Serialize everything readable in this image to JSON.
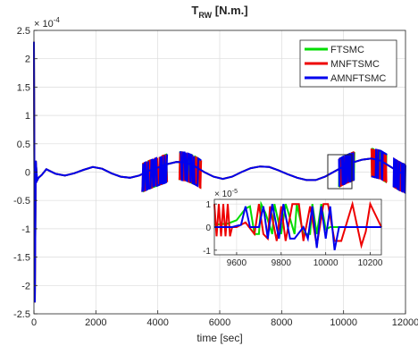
{
  "chart_data": [
    {
      "type": "line",
      "title_main": "T",
      "title_sub": "RW",
      "title_rest": " [N.m.]",
      "xlabel": "time [sec]",
      "ylabel": "",
      "exponent_base": "× 10",
      "exponent_power": "-4",
      "xlim": [
        0,
        12000
      ],
      "ylim": [
        -2.5,
        2.5
      ],
      "xticks": [
        0,
        2000,
        4000,
        6000,
        8000,
        10000,
        12000
      ],
      "yticks": [
        -2.5,
        -2,
        -1.5,
        -1,
        -0.5,
        0,
        0.5,
        1,
        1.5,
        2,
        2.5
      ],
      "grid": true,
      "legend_position": "top-right",
      "series": [
        {
          "name": "FTSMC",
          "color": "#00dd00"
        },
        {
          "name": "MNFTSMC",
          "color": "#ee0000"
        },
        {
          "name": "AMNFTSMC",
          "color": "#0000ee"
        }
      ],
      "baseline_signal": {
        "x": [
          0,
          30,
          60,
          100,
          150,
          250,
          400,
          700,
          1000,
          1300,
          1600,
          1900,
          2200,
          2500,
          2800,
          3100,
          3400,
          3700,
          4000,
          4300,
          4600,
          4900,
          5200,
          5500,
          5800,
          6100,
          6400,
          6700,
          7000,
          7300,
          7600,
          7900,
          8200,
          8500,
          8800,
          9100,
          9400,
          9700,
          10000,
          10300,
          10600,
          10900,
          11200,
          11500,
          11800,
          12000
        ],
        "y": [
          2.3,
          -2.3,
          0.2,
          -0.15,
          -0.1,
          -0.05,
          0.05,
          -0.03,
          -0.06,
          -0.02,
          0.04,
          0.09,
          0.06,
          -0.02,
          -0.08,
          -0.1,
          -0.06,
          0.02,
          0.08,
          0.14,
          0.18,
          0.17,
          0.1,
          0.0,
          -0.08,
          -0.12,
          -0.08,
          0.0,
          0.07,
          0.1,
          0.09,
          0.03,
          -0.04,
          -0.1,
          -0.14,
          -0.14,
          -0.08,
          0.01,
          0.1,
          0.17,
          0.22,
          0.24,
          0.2,
          0.1,
          0.0,
          -0.05
        ]
      },
      "chatter_ranges": [
        [
          3500,
          4300
        ],
        [
          4700,
          5400
        ],
        [
          9850,
          10350
        ],
        [
          10900,
          11400
        ],
        [
          11600,
          12000
        ]
      ]
    },
    {
      "type": "line",
      "title": "",
      "exponent_base": "× 10",
      "exponent_power": "-5",
      "xlim": [
        9500,
        10250
      ],
      "ylim": [
        -1.2,
        1.2
      ],
      "xticks": [
        9600,
        9800,
        10000,
        10200
      ],
      "yticks": [
        -1,
        0,
        1
      ],
      "grid": true,
      "series": [
        {
          "name": "FTSMC",
          "color": "#00dd00",
          "x": [
            9500,
            9560,
            9600,
            9640,
            9660,
            9680,
            9700,
            9710,
            9730,
            9760,
            9770,
            9800,
            9820,
            9830,
            9860,
            9870,
            9900,
            9930,
            9940,
            9960,
            9980,
            10000,
            10020,
            10040,
            10060,
            10080,
            10100,
            10150,
            10200,
            10250
          ],
          "y": [
            0.1,
            0.15,
            0.3,
            0.8,
            0.9,
            -0.3,
            -0.3,
            1.0,
            0.6,
            -0.3,
            1.0,
            -0.3,
            1.0,
            0.7,
            -0.3,
            1.0,
            -0.3,
            -0.3,
            1.0,
            -0.3,
            1.0,
            -0.1,
            0.0,
            0.0,
            0.0,
            0.0,
            0.0,
            0.0,
            0.0,
            0.0
          ]
        },
        {
          "name": "MNFTSMC",
          "color": "#ee0000",
          "x": [
            9500,
            9510,
            9520,
            9530,
            9540,
            9550,
            9560,
            9570,
            9580,
            9600,
            9640,
            9680,
            9700,
            9720,
            9740,
            9750,
            9780,
            9800,
            9820,
            9850,
            9880,
            9900,
            9930,
            9960,
            9990,
            10010,
            10040,
            10070,
            10120,
            10160,
            10180,
            10200,
            10250
          ],
          "y": [
            1.0,
            -0.4,
            1.0,
            -0.4,
            1.0,
            -0.4,
            1.0,
            -0.4,
            0.0,
            0.0,
            0.2,
            -0.3,
            1.0,
            -0.3,
            -0.5,
            0.9,
            -0.6,
            0.9,
            -0.6,
            1.0,
            1.0,
            -0.6,
            0.9,
            -0.8,
            1.0,
            1.0,
            -0.6,
            -0.6,
            1.0,
            -0.8,
            -0.2,
            1.0,
            0.0
          ]
        },
        {
          "name": "AMNFTSMC",
          "color": "#0000ee",
          "x": [
            9500,
            9580,
            9620,
            9640,
            9660,
            9700,
            9720,
            9740,
            9760,
            9790,
            9810,
            9840,
            9860,
            9900,
            9920,
            9940,
            9960,
            9980,
            10000,
            10020,
            10040,
            10060,
            10080,
            10100,
            10150,
            10200,
            10250
          ],
          "y": [
            0.0,
            0.0,
            0.1,
            0.9,
            0.0,
            0.0,
            0.9,
            -0.5,
            1.0,
            -0.5,
            1.0,
            -0.5,
            -0.5,
            0.0,
            -0.5,
            0.9,
            -0.9,
            0.9,
            -0.5,
            0.9,
            -1.0,
            0.0,
            0.0,
            0.0,
            0.0,
            0.0,
            0.0
          ]
        }
      ]
    }
  ]
}
